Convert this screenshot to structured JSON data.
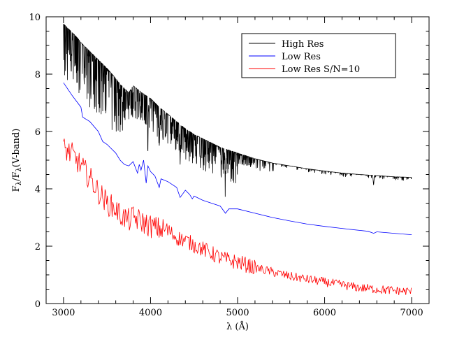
{
  "chart_data": {
    "type": "line",
    "title": "",
    "xlabel": "λ (Å)",
    "ylabel": "Fλ/Fλ(V-band)",
    "ylabel_parts": {
      "f1": "F",
      "s1": "λ",
      "slash": "/F",
      "s2": "λ",
      "tail": "(V-band)"
    },
    "xlim": [
      2800,
      7200
    ],
    "ylim": [
      0,
      10
    ],
    "x_ticks": [
      3000,
      4000,
      5000,
      6000,
      7000
    ],
    "x_tick_labels": [
      "3000",
      "4000",
      "5000",
      "6000",
      "7000"
    ],
    "y_ticks": [
      0,
      2,
      4,
      6,
      8,
      10
    ],
    "y_tick_labels": [
      "0",
      "2",
      "4",
      "6",
      "8",
      "10"
    ],
    "grid": false,
    "legend_position": "top-right",
    "series": [
      {
        "name": "High Res",
        "color": "#000000",
        "style": "noisy-absorption",
        "x": [
          3000,
          3050,
          3100,
          3150,
          3200,
          3300,
          3400,
          3500,
          3600,
          3650,
          3700,
          3750,
          3800,
          3900,
          4000,
          4100,
          4200,
          4300,
          4400,
          4500,
          4600,
          4700,
          4800,
          4900,
          5000,
          5200,
          5400,
          5600,
          5800,
          6000,
          6200,
          6400,
          6600,
          6800,
          7000
        ],
        "y": [
          9.75,
          9.6,
          9.45,
          9.3,
          9.1,
          8.8,
          8.5,
          8.2,
          7.85,
          7.65,
          7.5,
          7.35,
          7.6,
          7.35,
          7.15,
          6.85,
          6.6,
          6.35,
          6.1,
          5.9,
          5.75,
          5.6,
          5.45,
          5.35,
          5.25,
          5.05,
          4.9,
          4.8,
          4.7,
          4.62,
          4.55,
          4.5,
          4.46,
          4.42,
          4.4
        ]
      },
      {
        "name": "Low Res",
        "color": "#0000ff",
        "style": "smooth",
        "x": [
          3000,
          3100,
          3200,
          3220,
          3300,
          3400,
          3450,
          3500,
          3600,
          3650,
          3700,
          3750,
          3800,
          3850,
          3870,
          3890,
          3920,
          3950,
          3970,
          4000,
          4050,
          4100,
          4120,
          4200,
          4300,
          4340,
          4400,
          4450,
          4480,
          4500,
          4600,
          4700,
          4800,
          4861,
          4900,
          5000,
          5200,
          5400,
          5600,
          5800,
          6000,
          6200,
          6400,
          6500,
          6563,
          6600,
          6800,
          7000
        ],
        "y": [
          7.7,
          7.25,
          6.85,
          6.5,
          6.35,
          6.0,
          5.65,
          5.55,
          5.25,
          5.0,
          4.85,
          4.8,
          4.95,
          4.55,
          4.85,
          4.65,
          5.0,
          4.2,
          4.8,
          4.6,
          4.45,
          4.05,
          4.35,
          4.25,
          4.05,
          3.7,
          3.95,
          3.8,
          3.65,
          3.75,
          3.6,
          3.5,
          3.4,
          3.15,
          3.3,
          3.3,
          3.15,
          3.0,
          2.88,
          2.77,
          2.69,
          2.62,
          2.55,
          2.52,
          2.45,
          2.5,
          2.45,
          2.4
        ]
      },
      {
        "name": "Low Res S/N=10",
        "color": "#ff0000",
        "style": "noisy",
        "x": [
          3000,
          3100,
          3200,
          3300,
          3400,
          3500,
          3600,
          3650,
          3700,
          3750,
          3800,
          3900,
          4000,
          4100,
          4200,
          4300,
          4400,
          4500,
          4600,
          4700,
          4800,
          4900,
          5000,
          5200,
          5400,
          5600,
          5800,
          6000,
          6200,
          6400,
          6600,
          6800,
          7000
        ],
        "y": [
          5.4,
          5.2,
          4.8,
          4.4,
          3.9,
          3.5,
          3.3,
          3.1,
          3.0,
          2.9,
          3.0,
          2.85,
          2.7,
          2.6,
          2.55,
          2.3,
          2.2,
          2.05,
          1.9,
          1.75,
          1.6,
          1.5,
          1.45,
          1.25,
          1.1,
          0.95,
          0.85,
          0.75,
          0.65,
          0.55,
          0.5,
          0.45,
          0.42
        ]
      }
    ]
  }
}
